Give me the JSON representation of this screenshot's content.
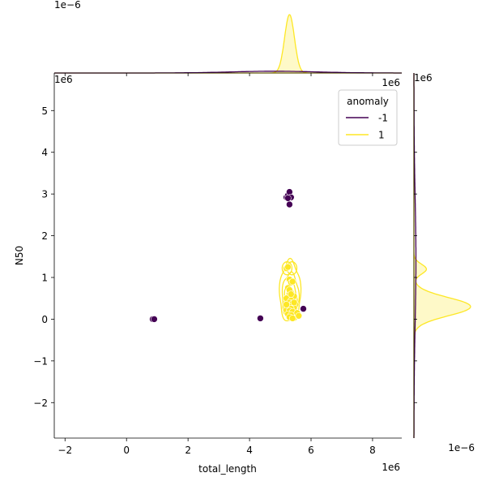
{
  "chart_data": {
    "type": "scatter",
    "subtype": "jointplot-kde",
    "xlabel": "total_length",
    "ylabel": "N50",
    "x_offset_label": "1e6",
    "y_offset_label": "1e6",
    "xlim": [
      -2.35,
      8.95
    ],
    "ylim": [
      -2.85,
      5.9
    ],
    "x_ticks": [
      -2,
      0,
      2,
      4,
      6,
      8
    ],
    "y_ticks": [
      -2,
      -1,
      0,
      1,
      2,
      3,
      4,
      5
    ],
    "marginal_x_offset_label": "1e−6",
    "marginal_y_offset_label": "1e−6",
    "legend": {
      "title": "anomaly",
      "position": "top-right",
      "entries": [
        {
          "label": "-1",
          "color": "#440154"
        },
        {
          "label": "1",
          "color": "#fde725"
        }
      ]
    },
    "series": [
      {
        "name": "-1",
        "color": "#440154",
        "x": [
          0.85,
          0.9,
          4.35,
          5.2,
          5.25,
          5.3,
          5.35,
          5.3,
          5.25,
          5.3,
          5.75
        ],
        "y": [
          0.0,
          0.0,
          0.02,
          2.92,
          2.97,
          3.05,
          2.92,
          2.75,
          2.9,
          0.08,
          0.25
        ]
      },
      {
        "name": "1",
        "color": "#fde725",
        "x": [
          5.2,
          5.25,
          5.3,
          5.35,
          5.4,
          5.25,
          5.3,
          5.45,
          5.2,
          5.35,
          5.3,
          5.4,
          5.5,
          5.25,
          5.3,
          5.45,
          5.35,
          5.2,
          5.3,
          5.4,
          5.55,
          5.25,
          5.35,
          5.3,
          5.4,
          5.6,
          5.3,
          5.2,
          5.35,
          5.45
        ],
        "y": [
          1.22,
          1.25,
          0.95,
          0.88,
          0.9,
          0.75,
          0.62,
          0.55,
          0.5,
          0.45,
          0.4,
          0.38,
          0.35,
          0.32,
          0.3,
          0.28,
          0.25,
          0.22,
          0.2,
          0.18,
          0.15,
          0.12,
          0.1,
          0.05,
          0.02,
          0.08,
          0.7,
          0.35,
          0.6,
          0.4
        ]
      }
    ]
  }
}
